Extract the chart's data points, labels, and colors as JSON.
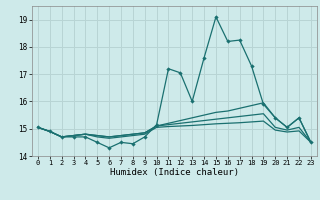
{
  "xlabel": "Humidex (Indice chaleur)",
  "x": [
    0,
    1,
    2,
    3,
    4,
    5,
    6,
    7,
    8,
    9,
    10,
    11,
    12,
    13,
    14,
    15,
    16,
    17,
    18,
    19,
    20,
    21,
    22,
    23
  ],
  "line1": [
    15.05,
    14.9,
    14.7,
    14.7,
    14.7,
    14.5,
    14.3,
    14.5,
    14.45,
    14.7,
    15.15,
    17.2,
    17.05,
    16.0,
    17.6,
    19.1,
    18.2,
    18.25,
    17.3,
    15.9,
    15.4,
    15.05,
    15.4,
    14.5
  ],
  "line2": [
    15.05,
    14.9,
    14.7,
    14.75,
    14.8,
    14.75,
    14.7,
    14.75,
    14.8,
    14.85,
    15.1,
    15.2,
    15.3,
    15.4,
    15.5,
    15.6,
    15.65,
    15.75,
    15.85,
    15.95,
    15.4,
    15.05,
    15.4,
    14.5
  ],
  "line3": [
    15.05,
    14.9,
    14.7,
    14.75,
    14.8,
    14.75,
    14.7,
    14.75,
    14.8,
    14.85,
    15.1,
    15.15,
    15.2,
    15.25,
    15.3,
    15.35,
    15.4,
    15.45,
    15.5,
    15.55,
    15.05,
    14.95,
    15.05,
    14.5
  ],
  "line4": [
    15.05,
    14.9,
    14.7,
    14.75,
    14.8,
    14.7,
    14.65,
    14.7,
    14.75,
    14.8,
    15.05,
    15.08,
    15.1,
    15.12,
    15.15,
    15.18,
    15.2,
    15.22,
    15.25,
    15.28,
    14.95,
    14.88,
    14.92,
    14.5
  ],
  "line_color": "#1a7070",
  "bg_color": "#ceeaea",
  "grid_color": "#b8d4d4",
  "xlim": [
    -0.5,
    23.5
  ],
  "ylim": [
    14.0,
    19.5
  ],
  "yticks": [
    14,
    15,
    16,
    17,
    18,
    19
  ],
  "xticks": [
    0,
    1,
    2,
    3,
    4,
    5,
    6,
    7,
    8,
    9,
    10,
    11,
    12,
    13,
    14,
    15,
    16,
    17,
    18,
    19,
    20,
    21,
    22,
    23
  ]
}
